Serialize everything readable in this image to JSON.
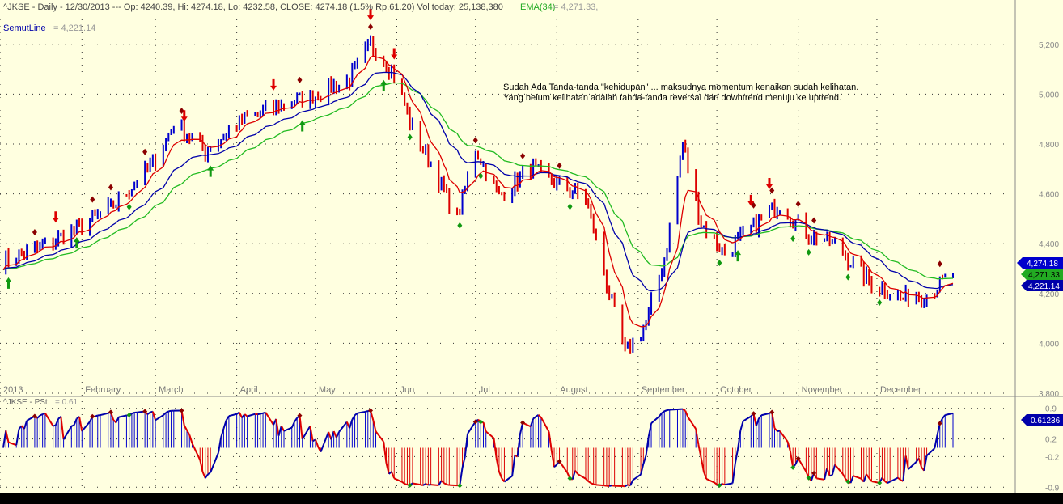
{
  "header": {
    "symbol_line": "^JKSE - Daily - 12/30/2013  --- Op: 4240.39, Hi: 4274.18, Lo: 4232.58, CLOSE: 4274.18 (1.5% Rp.61.20) Vol today: 25,138,380",
    "ema_label": "EMA(34)",
    "ema_value": "= 4,271.33,",
    "semut_label": "SemutLine",
    "semut_value": "= 4,221.14"
  },
  "annotation": {
    "line1": "Sudah Ada Tanda-tanda \"kehidupan\" ... maksudnya momentum kenaikan sudah kelihatan.",
    "line2": "Yang belum kelihatan adalah tanda-tanda reversal dari downtrend menuju ke uptrend."
  },
  "badges": {
    "close": "4,274.18",
    "ema": "4,271.33",
    "semut": "4,221.14",
    "pst": "0.61236"
  },
  "lower_panel": {
    "label": "^JKSE - PSt",
    "value": "= 0.61"
  },
  "colors": {
    "background": "#FFFFE0",
    "up_bar": "#0000CD",
    "down_bar": "#DD0000",
    "ema_line": "#22BB22",
    "semut_line": "#0000AA",
    "fast_line": "#DD0000",
    "grid": "#333333"
  },
  "chart_data": [
    {
      "type": "candlestick",
      "title": "^JKSE - Daily - 12/30/2013",
      "x_axis_labels": [
        "2013",
        "February",
        "March",
        "April",
        "May",
        "Jun",
        "Jul",
        "August",
        "September",
        "October",
        "November",
        "December"
      ],
      "y_ticks": [
        "5,200",
        "5,000",
        "4,800",
        "4,600",
        "4,400",
        "4,200",
        "4,000",
        "3,800"
      ],
      "ylim": [
        3800,
        5300
      ],
      "close_series_approx": [
        [
          "2013-01-02",
          4330
        ],
        [
          "2013-01-15",
          4380
        ],
        [
          "2013-01-31",
          4460
        ],
        [
          "2013-02-14",
          4560
        ],
        [
          "2013-02-28",
          4720
        ],
        [
          "2013-03-08",
          4880
        ],
        [
          "2013-03-20",
          4770
        ],
        [
          "2013-04-04",
          4900
        ],
        [
          "2013-04-19",
          4960
        ],
        [
          "2013-05-02",
          5000
        ],
        [
          "2013-05-14",
          5060
        ],
        [
          "2013-05-22",
          5200
        ],
        [
          "2013-05-31",
          5080
        ],
        [
          "2013-06-07",
          4860
        ],
        [
          "2013-06-14",
          4720
        ],
        [
          "2013-06-24",
          4500
        ],
        [
          "2013-07-01",
          4780
        ],
        [
          "2013-07-10",
          4590
        ],
        [
          "2013-07-22",
          4700
        ],
        [
          "2013-08-01",
          4640
        ],
        [
          "2013-08-12",
          4580
        ],
        [
          "2013-08-21",
          4200
        ],
        [
          "2013-08-27",
          3960
        ],
        [
          "2013-09-04",
          4080
        ],
        [
          "2013-09-11",
          4340
        ],
        [
          "2013-09-18",
          4800
        ],
        [
          "2013-09-25",
          4480
        ],
        [
          "2013-10-04",
          4360
        ],
        [
          "2013-10-16",
          4480
        ],
        [
          "2013-10-25",
          4560
        ],
        [
          "2013-11-04",
          4440
        ],
        [
          "2013-11-15",
          4400
        ],
        [
          "2013-11-27",
          4260
        ],
        [
          "2013-12-10",
          4180
        ],
        [
          "2013-12-20",
          4200
        ],
        [
          "2013-12-30",
          4274.18
        ]
      ],
      "series": [
        {
          "name": "EMA(34)",
          "last": 4271.33
        },
        {
          "name": "SemutLine",
          "last": 4221.14
        }
      ]
    },
    {
      "type": "line",
      "title": "^JKSE - PSt",
      "y_ticks": [
        "0.9",
        "0.2",
        "-0.2",
        "-0.9"
      ],
      "ylim": [
        -0.95,
        0.95
      ],
      "last": 0.61236
    }
  ]
}
